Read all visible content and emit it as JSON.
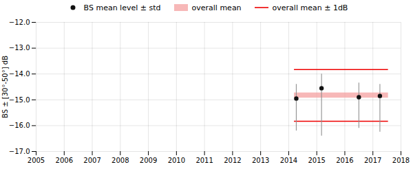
{
  "chart_data": {
    "type": "scatter",
    "ylabel": "BS ± [30°-50°] dB",
    "xlim": [
      2005,
      2018
    ],
    "ylim": [
      -17,
      -12
    ],
    "xticks": [
      2005,
      2006,
      2007,
      2008,
      2009,
      2010,
      2011,
      2012,
      2013,
      2014,
      2015,
      2016,
      2017,
      2018
    ],
    "yticks": [
      -17,
      -16,
      -15,
      -14,
      -13,
      -12
    ],
    "grid": true,
    "legend": "top",
    "series": [
      {
        "name": "BS mean level ± std",
        "color": "#111111",
        "error_color": "#909090",
        "x": [
          2014.27,
          2015.17,
          2016.5,
          2017.25
        ],
        "values": [
          -14.95,
          -14.55,
          -14.9,
          -14.85
        ],
        "error_lower": [
          1.25,
          1.85,
          1.2,
          1.4
        ],
        "error_upper": [
          0.55,
          0.55,
          0.55,
          0.45
        ]
      }
    ],
    "band": {
      "name": "overall mean",
      "color": "#f4a0a0",
      "x_start": 2014.2,
      "x_end": 2017.55,
      "low": -14.93,
      "high": -14.73
    },
    "lines": {
      "name": "overall mean ± 1dB",
      "color": "#ee0000",
      "x_start": 2014.2,
      "x_end": 2017.55,
      "levels": [
        -13.83,
        -15.83
      ]
    }
  }
}
